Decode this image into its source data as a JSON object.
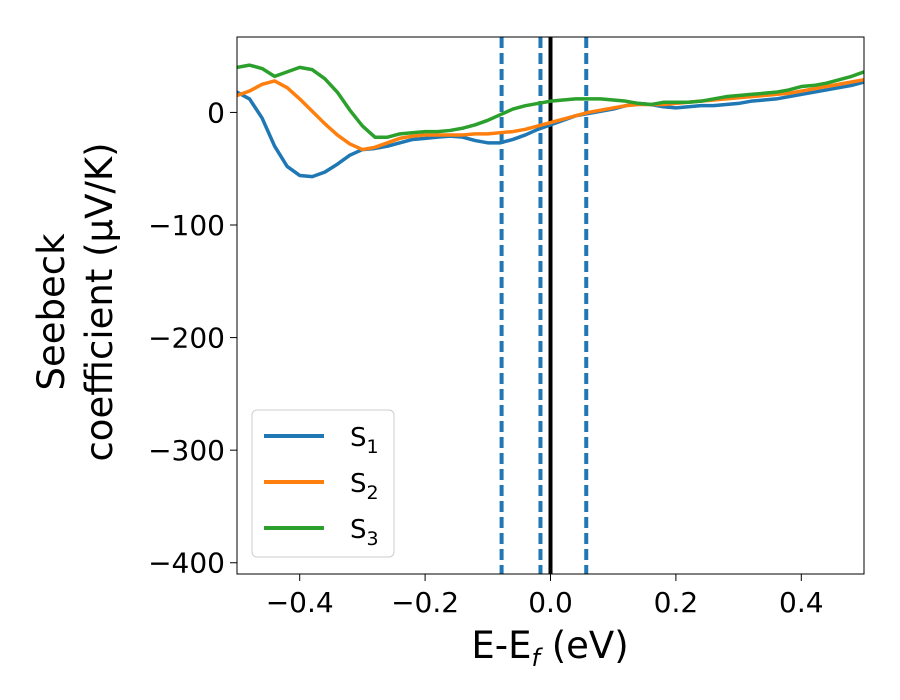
{
  "chart_data": {
    "type": "line",
    "xlabel_main": "E-E",
    "xlabel_sub": "f",
    "xlabel_unit": "(eV)",
    "ylabel_line1": "Seebeck",
    "ylabel_line2": "coefficient  (μV/K)",
    "xlim": [
      -0.5,
      0.5
    ],
    "ylim": [
      -410,
      67
    ],
    "x_ticks": [
      -0.4,
      -0.2,
      0.0,
      0.2,
      0.4
    ],
    "x_tick_labels": [
      "−0.4",
      "−0.2",
      "0.0",
      "0.2",
      "0.4"
    ],
    "y_ticks": [
      0,
      -100,
      -200,
      -300,
      -400
    ],
    "y_tick_labels": [
      "0",
      "−100",
      "−200",
      "−300",
      "−400"
    ],
    "grid": false,
    "legend_position": "lower-left",
    "vertical_lines": [
      {
        "x": -0.078,
        "style": "dashed",
        "color": "#1f77b4"
      },
      {
        "x": -0.016,
        "style": "dashed",
        "color": "#1f77b4"
      },
      {
        "x": 0.0,
        "style": "solid",
        "color": "#000000"
      },
      {
        "x": 0.057,
        "style": "dashed",
        "color": "#1f77b4"
      }
    ],
    "series": [
      {
        "name": "S",
        "sub": "1",
        "color": "#1f77b4",
        "x": [
          -0.5,
          -0.48,
          -0.46,
          -0.44,
          -0.42,
          -0.4,
          -0.38,
          -0.36,
          -0.34,
          -0.32,
          -0.3,
          -0.28,
          -0.26,
          -0.24,
          -0.22,
          -0.2,
          -0.18,
          -0.16,
          -0.14,
          -0.12,
          -0.1,
          -0.08,
          -0.06,
          -0.04,
          -0.02,
          0.0,
          0.02,
          0.04,
          0.06,
          0.08,
          0.1,
          0.12,
          0.14,
          0.16,
          0.18,
          0.2,
          0.22,
          0.24,
          0.26,
          0.28,
          0.3,
          0.32,
          0.34,
          0.36,
          0.38,
          0.4,
          0.42,
          0.44,
          0.46,
          0.48,
          0.5
        ],
        "y": [
          18,
          12,
          -5,
          -30,
          -48,
          -56,
          -57,
          -53,
          -46,
          -38,
          -33,
          -32,
          -30,
          -27,
          -24,
          -23,
          -22,
          -21,
          -22,
          -25,
          -27,
          -27,
          -24,
          -20,
          -15,
          -11,
          -7,
          -3,
          -1,
          1,
          3,
          6,
          8,
          7,
          5,
          4,
          5,
          6,
          6,
          7,
          8,
          10,
          11,
          12,
          14,
          16,
          18,
          20,
          22,
          24,
          27
        ]
      },
      {
        "name": "S",
        "sub": "2",
        "color": "#ff7f0e",
        "x": [
          -0.5,
          -0.48,
          -0.46,
          -0.44,
          -0.42,
          -0.4,
          -0.38,
          -0.36,
          -0.34,
          -0.32,
          -0.3,
          -0.28,
          -0.26,
          -0.24,
          -0.22,
          -0.2,
          -0.18,
          -0.16,
          -0.14,
          -0.12,
          -0.1,
          -0.08,
          -0.06,
          -0.04,
          -0.02,
          0.0,
          0.02,
          0.04,
          0.06,
          0.08,
          0.1,
          0.12,
          0.14,
          0.16,
          0.18,
          0.2,
          0.22,
          0.24,
          0.26,
          0.28,
          0.3,
          0.32,
          0.34,
          0.36,
          0.38,
          0.4,
          0.42,
          0.44,
          0.46,
          0.48,
          0.5
        ],
        "y": [
          15,
          19,
          25,
          28,
          22,
          12,
          1,
          -10,
          -20,
          -28,
          -33,
          -31,
          -27,
          -23,
          -21,
          -20,
          -20,
          -20,
          -20,
          -19,
          -19,
          -18,
          -17,
          -15,
          -12,
          -9,
          -6,
          -3,
          0,
          2,
          4,
          6,
          7,
          7,
          7,
          8,
          9,
          10,
          11,
          12,
          13,
          14,
          15,
          16,
          17,
          19,
          21,
          23,
          25,
          27,
          29
        ]
      },
      {
        "name": "S",
        "sub": "3",
        "color": "#2ca02c",
        "x": [
          -0.5,
          -0.48,
          -0.46,
          -0.44,
          -0.42,
          -0.4,
          -0.38,
          -0.36,
          -0.34,
          -0.32,
          -0.3,
          -0.28,
          -0.26,
          -0.24,
          -0.22,
          -0.2,
          -0.18,
          -0.16,
          -0.14,
          -0.12,
          -0.1,
          -0.08,
          -0.06,
          -0.04,
          -0.02,
          0.0,
          0.02,
          0.04,
          0.06,
          0.08,
          0.1,
          0.12,
          0.14,
          0.16,
          0.18,
          0.2,
          0.22,
          0.24,
          0.26,
          0.28,
          0.3,
          0.32,
          0.34,
          0.36,
          0.38,
          0.4,
          0.42,
          0.44,
          0.46,
          0.48,
          0.5
        ],
        "y": [
          40,
          42,
          39,
          32,
          36,
          40,
          38,
          30,
          18,
          2,
          -12,
          -22,
          -22,
          -19,
          -18,
          -17,
          -17,
          -16,
          -14,
          -11,
          -7,
          -2,
          3,
          6,
          8,
          10,
          11,
          12,
          12,
          12,
          11,
          10,
          8,
          7,
          9,
          9,
          9,
          10,
          12,
          14,
          15,
          16,
          17,
          18,
          20,
          23,
          24,
          26,
          29,
          32,
          36
        ]
      }
    ]
  }
}
